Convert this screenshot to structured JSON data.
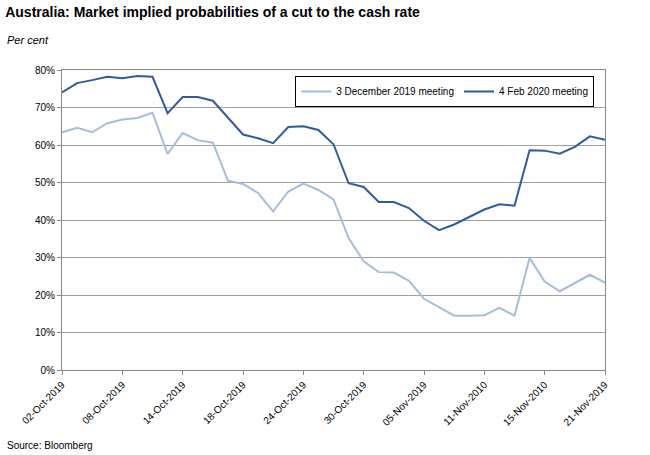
{
  "chart_data": {
    "type": "line",
    "title": "Australia: Market implied probabilities of a cut to the cash rate",
    "subtitle": "Per cent",
    "source": "Source: Bloomberg",
    "categories": [
      "02-Oct-2019",
      null,
      null,
      null,
      "08-Oct-2019",
      null,
      null,
      null,
      "14-Oct-2019",
      null,
      null,
      null,
      "18-Oct-2019",
      null,
      null,
      null,
      "24-Oct-2019",
      null,
      null,
      null,
      "30-Oct-2019",
      null,
      null,
      null,
      "05-Nov-2019",
      null,
      null,
      null,
      "11-Nov-2010",
      null,
      null,
      null,
      "15-Nov-2010",
      null,
      null,
      null,
      "21-Nov-2019"
    ],
    "series": [
      {
        "name": "3 December 2019 meeting",
        "color": "#a6bddb",
        "values": [
          63.4,
          64.6,
          63.4,
          65.8,
          66.8,
          67.2,
          68.6,
          57.6,
          63.2,
          61.3,
          60.6,
          50.5,
          49.6,
          47.2,
          42.3,
          47.6,
          49.7,
          48.0,
          45.5,
          35.2,
          29.0,
          26.1,
          26.0,
          23.8,
          19.0,
          16.7,
          14.5,
          14.5,
          14.6,
          16.6,
          14.5,
          29.9,
          23.6,
          21.0,
          23.3,
          25.4,
          23.3
        ]
      },
      {
        "name": "4 Feb 2020 meeting",
        "color": "#2e5c9e",
        "values": [
          74.0,
          76.5,
          77.3,
          78.2,
          77.8,
          78.4,
          78.2,
          68.5,
          72.8,
          72.8,
          71.8,
          67.2,
          62.8,
          61.8,
          60.5,
          64.8,
          65.0,
          64.0,
          60.2,
          49.8,
          48.8,
          44.8,
          44.8,
          43.2,
          39.8,
          37.3,
          38.8,
          40.8,
          42.8,
          44.2,
          43.8,
          58.6,
          58.5,
          57.7,
          59.5,
          62.3,
          61.4
        ]
      }
    ],
    "ylim": [
      0,
      80
    ],
    "yticks": [
      {
        "value": 0,
        "label": "0%"
      },
      {
        "value": 10,
        "label": "10%"
      },
      {
        "value": 20,
        "label": "20%"
      },
      {
        "value": 30,
        "label": "30%"
      },
      {
        "value": 40,
        "label": "40%"
      },
      {
        "value": 50,
        "label": "50%"
      },
      {
        "value": 60,
        "label": "60%"
      },
      {
        "value": 70,
        "label": "70%"
      },
      {
        "value": 80,
        "label": "80%"
      }
    ],
    "grid": true,
    "legend": "upper right"
  }
}
